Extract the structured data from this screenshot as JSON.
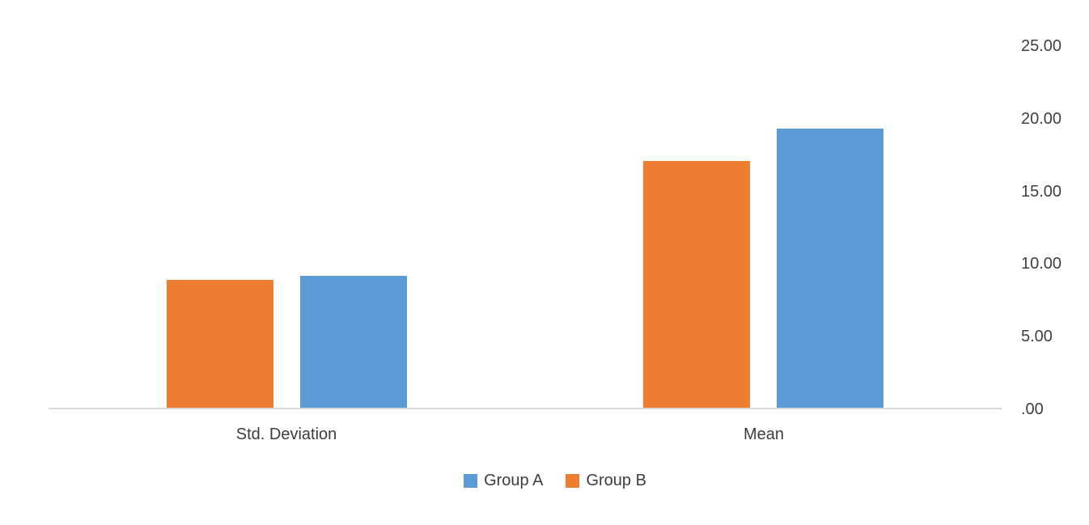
{
  "chart_data": {
    "type": "bar",
    "title": "",
    "xlabel": "",
    "ylabel": "",
    "categories": [
      "Std. Deviation",
      "Mean"
    ],
    "series": [
      {
        "name": "Group A",
        "color": "#5B9BD5",
        "values": [
          9.2,
          19.3
        ]
      },
      {
        "name": "Group B",
        "color": "#ED7D31",
        "values": [
          8.9,
          17.1
        ]
      }
    ],
    "bar_order_in_group": [
      "Group B",
      "Group A"
    ],
    "ylim": [
      0,
      25
    ],
    "y_ticks": [
      {
        "value": 25,
        "label": "25.00"
      },
      {
        "value": 20,
        "label": "20.00"
      },
      {
        "value": 15,
        "label": "15.00"
      },
      {
        "value": 10,
        "label": "10.00"
      },
      {
        "value": 5,
        "label": "5.00"
      },
      {
        "value": 0,
        "label": ".00"
      }
    ],
    "grid": false,
    "legend_position": "bottom",
    "axis_line_color": "#d9d9d9",
    "text_color": "#404040"
  }
}
